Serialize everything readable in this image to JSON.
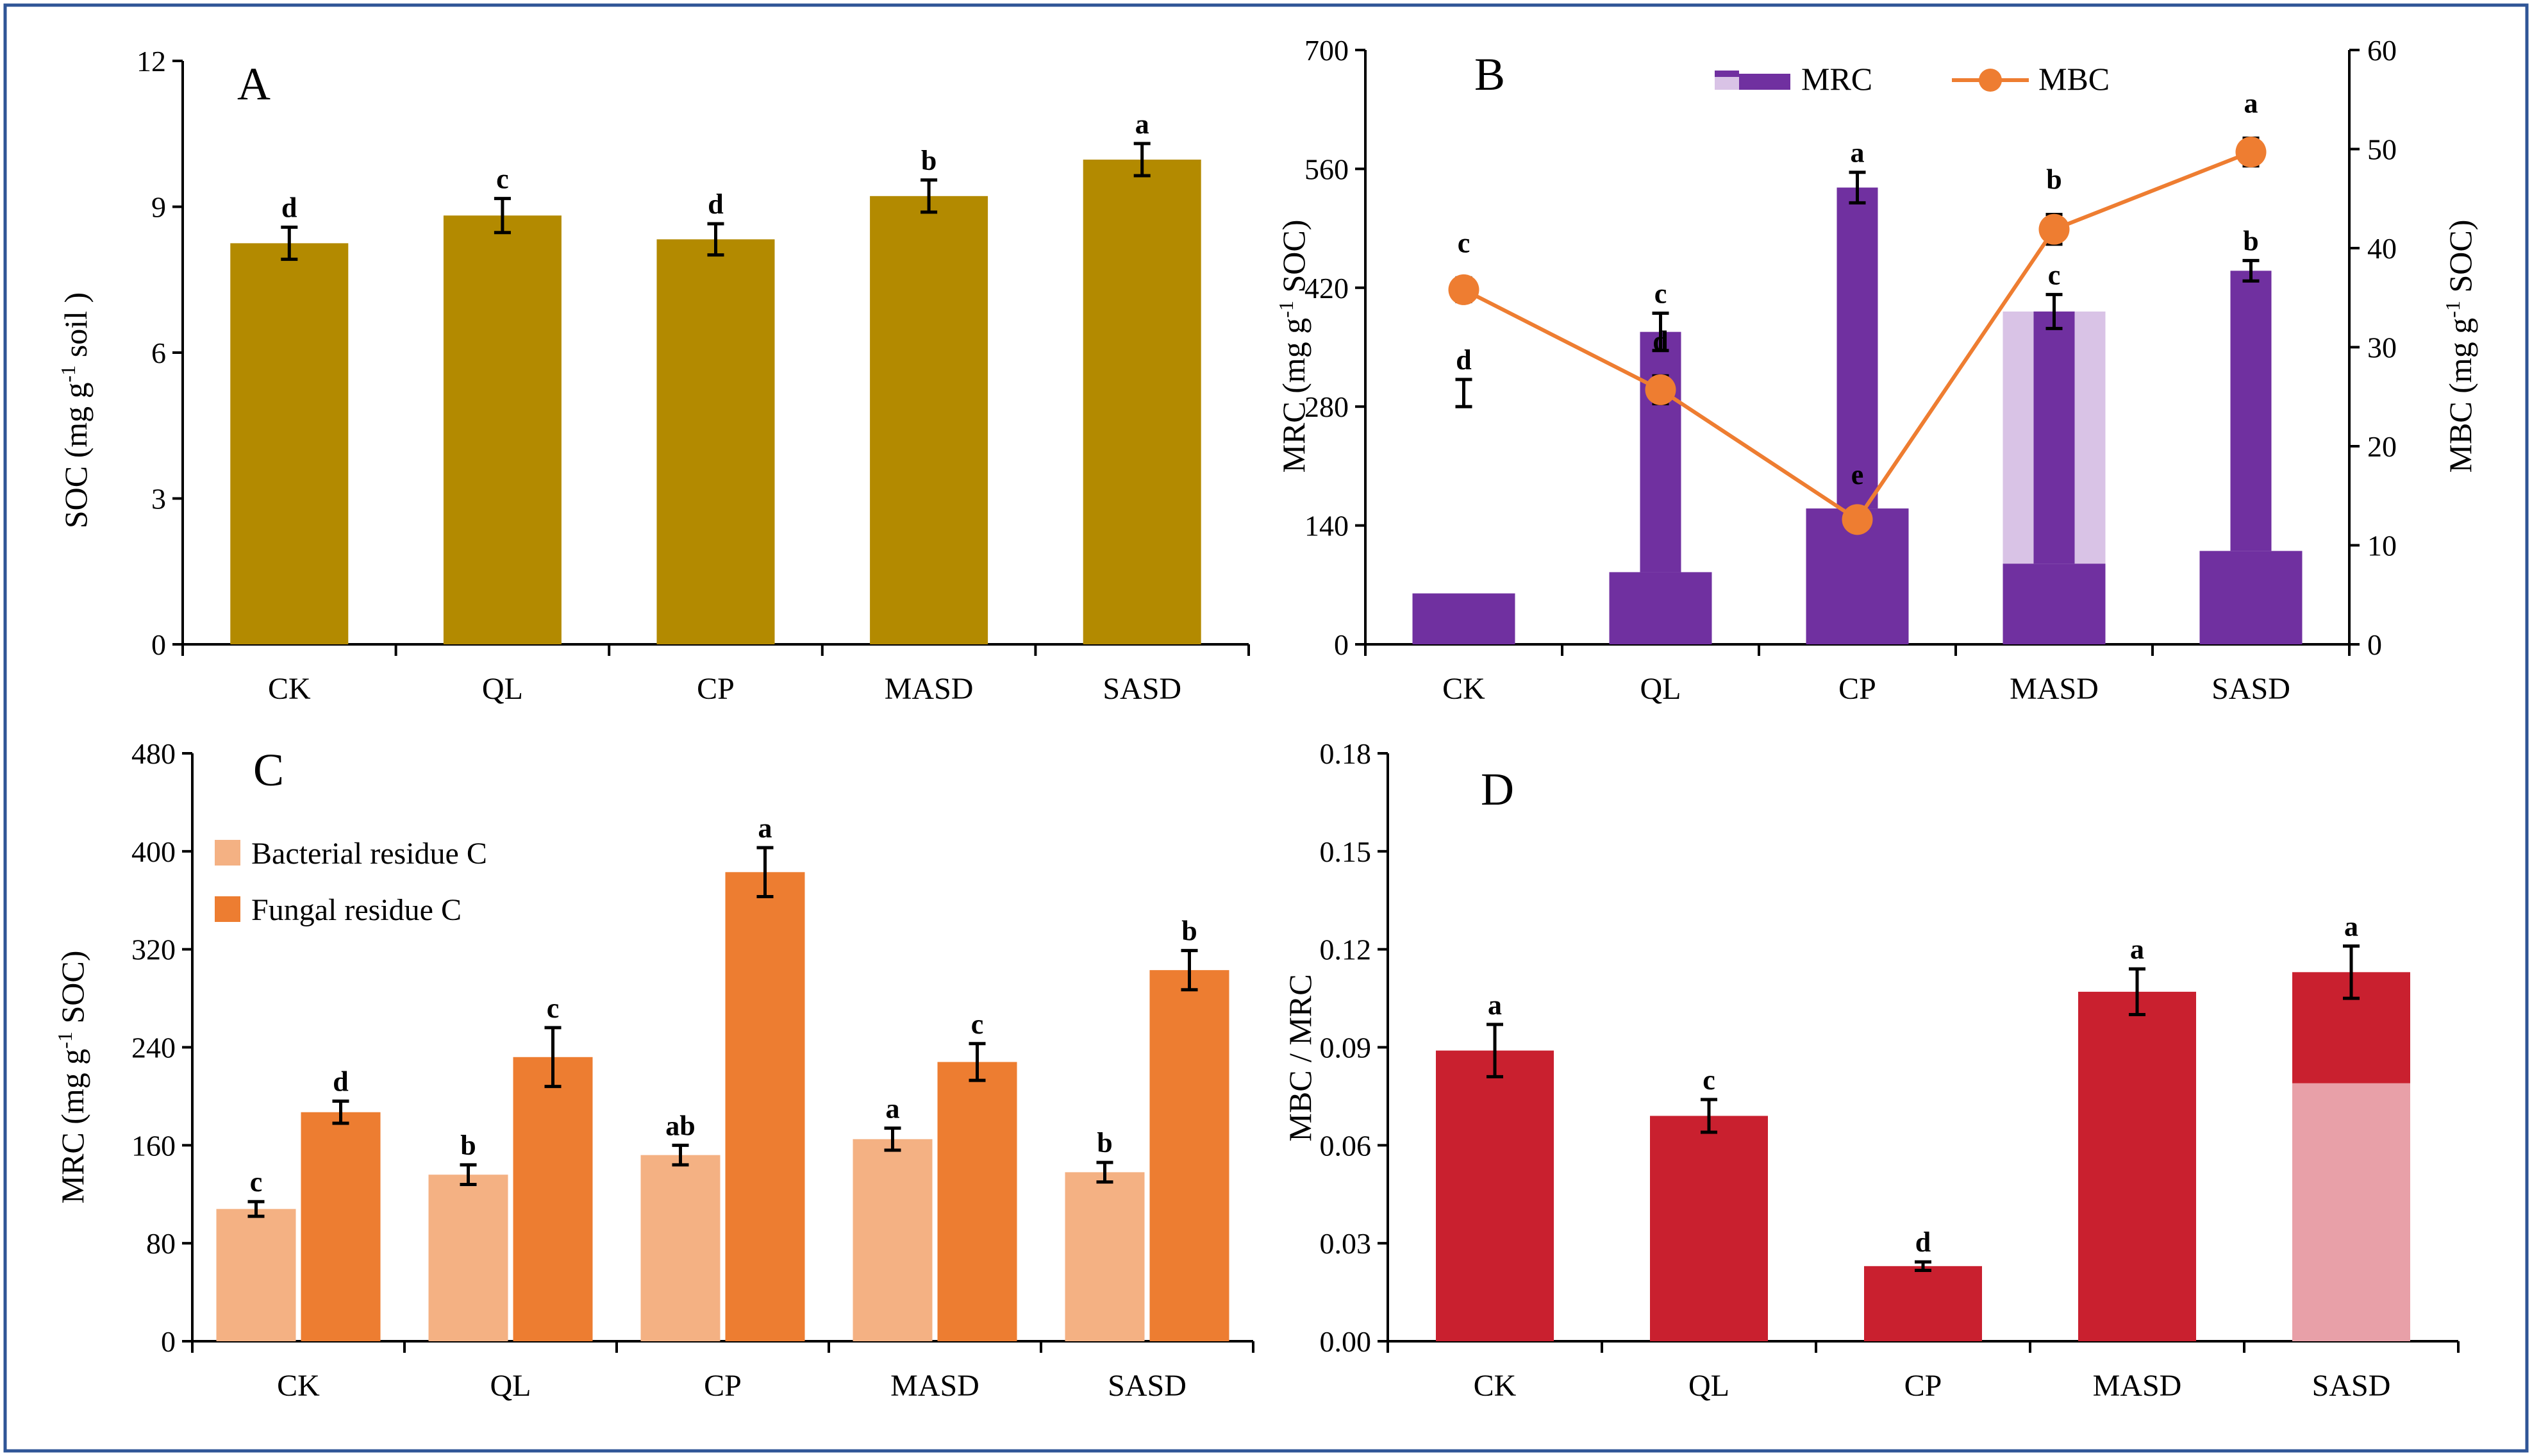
{
  "colors": {
    "frame": "#2f5597",
    "soc_bar": "#b38a00",
    "mrc_purple": "#7030a0",
    "mrc_light": "#d9c3e6",
    "mbc_orange": "#ee7d31",
    "bacterial": "#f4b183",
    "fungal": "#ed7d31",
    "ratio_red": "#c9202f",
    "ratio_pink": "#e8a0a8"
  },
  "chart_data": [
    {
      "id": "A",
      "type": "bar",
      "panel_label": "A",
      "categories": [
        "CK",
        "QL",
        "CP",
        "MASD",
        "SASD"
      ],
      "values": [
        8.25,
        8.82,
        8.33,
        9.22,
        9.97
      ],
      "errors": [
        0.33,
        0.35,
        0.32,
        0.33,
        0.33
      ],
      "letters": [
        "d",
        "c",
        "d",
        "b",
        "a"
      ],
      "ylabel": "SOC (mg g-1 soil )",
      "ylim": [
        0,
        12
      ],
      "yticks": [
        0,
        3,
        6,
        9,
        12
      ]
    },
    {
      "id": "B",
      "type": "bar+line",
      "panel_label": "B",
      "categories": [
        "CK",
        "QL",
        "CP",
        "MASD",
        "SASD"
      ],
      "ylabel": "MRC (mg g-1 SOC)",
      "y2label": "MBC  (mg g-1 SOC)",
      "ylim": [
        0,
        700
      ],
      "yticks": [
        0,
        140,
        280,
        420,
        560,
        700
      ],
      "y2lim": [
        0,
        60
      ],
      "y2ticks": [
        0,
        10,
        20,
        30,
        40,
        50,
        60
      ],
      "legend": [
        "MRC",
        "MBC"
      ],
      "mrc": {
        "values": [
          60,
          85,
          160,
          95,
          110
        ],
        "upper": [
          0,
          368,
          538,
          392,
          440
        ],
        "light_range": [
          [
            0,
            0
          ],
          [
            0,
            85
          ],
          [
            0,
            160
          ],
          [
            95,
            392
          ],
          [
            0,
            0
          ]
        ],
        "errors": [
          [
            296,
            16
          ],
          [
            368,
            22
          ],
          [
            538,
            18
          ],
          [
            392,
            20
          ],
          [
            440,
            12
          ]
        ],
        "letters": [
          "d",
          "c",
          "a",
          "c",
          "b"
        ]
      },
      "mbc": {
        "values": [
          35.8,
          25.7,
          12.6,
          41.9,
          49.7
        ],
        "errors": [
          1.2,
          1.4,
          1.0,
          1.5,
          1.4
        ],
        "letters": [
          "c",
          "d",
          "e",
          "b",
          "a"
        ]
      }
    },
    {
      "id": "C",
      "type": "bar",
      "panel_label": "C",
      "categories": [
        "CK",
        "QL",
        "CP",
        "MASD",
        "SASD"
      ],
      "ylabel": "MRC (mg g-1  SOC)",
      "ylim": [
        0,
        480
      ],
      "yticks": [
        0,
        80,
        160,
        240,
        320,
        400,
        480
      ],
      "series": [
        {
          "name": "Bacterial residue C",
          "values": [
            108,
            136,
            152,
            165,
            138
          ],
          "errors": [
            6,
            8,
            8,
            9,
            8
          ],
          "letters": [
            "c",
            "b",
            "ab",
            "a",
            "b"
          ]
        },
        {
          "name": "Fungal residue C",
          "values": [
            187,
            232,
            383,
            228,
            303
          ],
          "errors": [
            9,
            24,
            20,
            15,
            16
          ],
          "letters": [
            "d",
            "c",
            "a",
            "c",
            "b"
          ]
        }
      ]
    },
    {
      "id": "D",
      "type": "bar",
      "panel_label": "D",
      "categories": [
        "CK",
        "QL",
        "CP",
        "MASD",
        "SASD"
      ],
      "ylabel": "MBC / MRC",
      "ylim": [
        0,
        0.18
      ],
      "yticks": [
        "0.00",
        "0.03",
        "0.06",
        "0.09",
        "0.12",
        "0.15",
        "0.18"
      ],
      "values": [
        0.089,
        0.069,
        0.023,
        0.107,
        0.113
      ],
      "errors": [
        0.008,
        0.005,
        0.0013,
        0.007,
        0.008
      ],
      "letters": [
        "a",
        "c",
        "d",
        "a",
        "a"
      ]
    }
  ]
}
